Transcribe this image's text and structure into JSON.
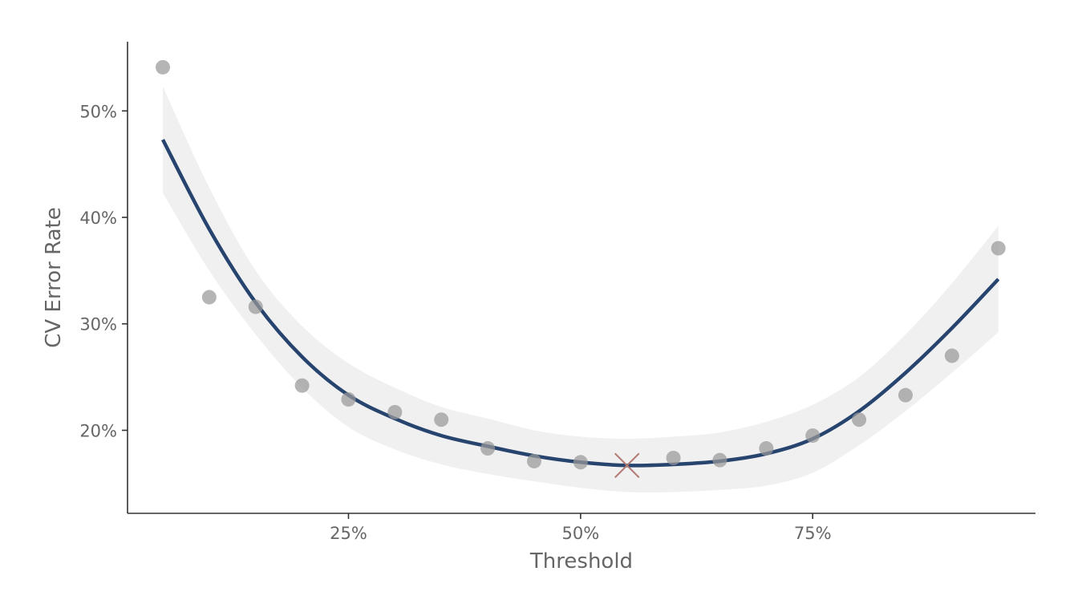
{
  "chart_data": {
    "type": "scatter",
    "xlabel": "Threshold",
    "ylabel": "CV Error Rate",
    "xlim": [
      1.2,
      99
    ],
    "ylim": [
      12.2,
      56.5
    ],
    "x_ticks": [
      25,
      50,
      75
    ],
    "x_tick_labels": [
      "25%",
      "50%",
      "75%"
    ],
    "y_ticks": [
      20,
      30,
      40,
      50
    ],
    "y_tick_labels": [
      "20%",
      "30%",
      "40%",
      "50%"
    ],
    "grid": false,
    "legend": "none",
    "points": {
      "x": [
        5,
        10,
        15,
        20,
        25,
        30,
        35,
        40,
        45,
        50,
        60,
        65,
        70,
        75,
        80,
        85,
        90,
        95
      ],
      "y": [
        54.1,
        32.5,
        31.6,
        24.2,
        22.9,
        21.7,
        21.0,
        18.3,
        17.1,
        17.0,
        17.4,
        17.2,
        18.3,
        19.5,
        21.0,
        23.3,
        27.0,
        37.1
      ],
      "color": "#999999"
    },
    "smooth": {
      "x": [
        5,
        10,
        15,
        20,
        25,
        30,
        35,
        40,
        45,
        50,
        55,
        60,
        65,
        70,
        75,
        80,
        85,
        90,
        95
      ],
      "y": [
        47.3,
        38.9,
        32.0,
        26.9,
        23.3,
        21.1,
        19.5,
        18.5,
        17.6,
        17.0,
        16.7,
        16.8,
        17.1,
        17.8,
        19.2,
        21.8,
        25.4,
        29.6,
        34.2
      ],
      "band_lower": [
        42.3,
        35.0,
        29.0,
        24.0,
        20.3,
        18.2,
        16.8,
        15.9,
        15.2,
        14.6,
        14.2,
        14.2,
        14.4,
        14.8,
        16.0,
        18.6,
        21.8,
        25.4,
        29.2
      ],
      "band_upper": [
        52.3,
        42.8,
        35.0,
        29.8,
        26.3,
        24.0,
        22.2,
        21.1,
        20.0,
        19.4,
        19.2,
        19.4,
        19.8,
        20.8,
        22.4,
        25.0,
        29.0,
        33.8,
        39.2
      ],
      "line_color": "#27446f",
      "band_color": "#f0f0f0"
    },
    "minimum_marker": {
      "x": 55,
      "y": 16.7,
      "color": "#b07a72"
    }
  }
}
